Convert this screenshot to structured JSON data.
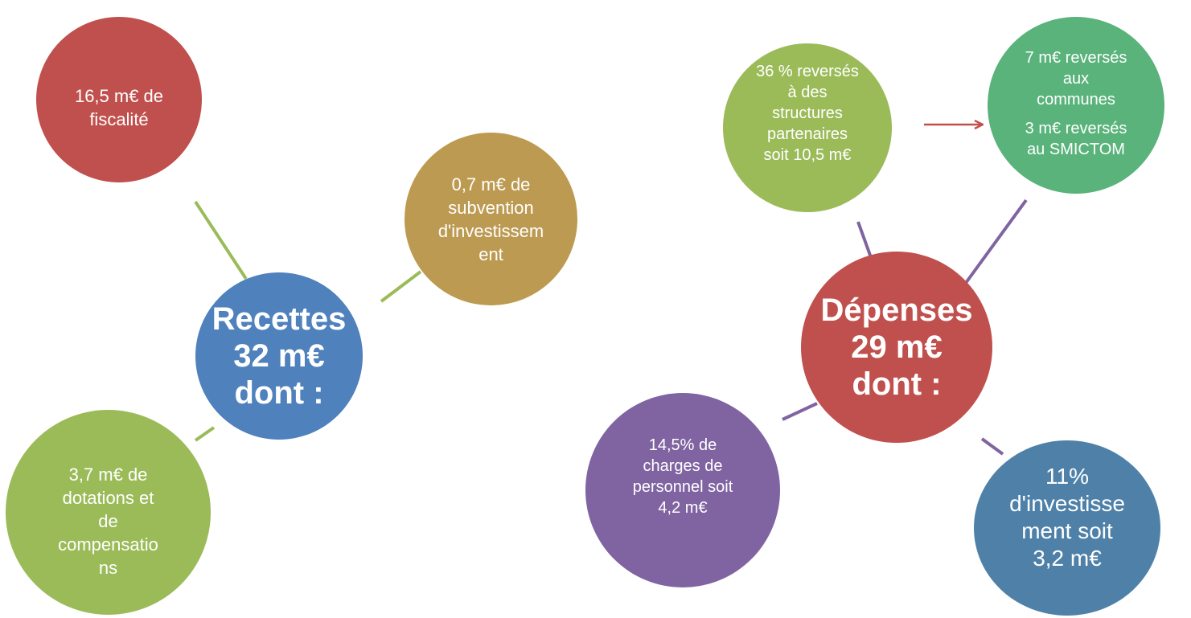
{
  "recettes": {
    "center": [
      "Recettes",
      "32 m€",
      "dont :"
    ],
    "fiscalite": [
      "16,5 m€ de",
      "fiscalité"
    ],
    "subvention": [
      "0,7 m€ de",
      "subvention",
      "d'investissem",
      "ent"
    ],
    "dotations": [
      "3,7 m€ de",
      "dotations et",
      "de",
      "compensatio",
      "ns"
    ]
  },
  "depenses": {
    "center": [
      "Dépenses",
      "29 m€",
      "dont :"
    ],
    "structures": [
      "36 % reversés",
      "à des",
      "structures",
      "partenaires",
      "soit 10,5 m€"
    ],
    "communes": [
      "7 m€ reversés",
      "aux",
      "communes"
    ],
    "smictom": [
      "3 m€ reversés",
      "au SMICTOM"
    ],
    "personnel": [
      "14,5% de",
      "charges de",
      "personnel soit",
      "4,2 m€"
    ],
    "investissement": [
      "11%",
      "d'investisse",
      "ment soit",
      "3,2 m€"
    ]
  },
  "colors": {
    "red": "#c0504d",
    "green": "#9bbb59",
    "teal_green": "#59b37b",
    "gold": "#bd9a51",
    "blue": "#4f81bd",
    "purple": "#8064a2",
    "steel_blue": "#4f81a8",
    "connector_green": "#9bbb59",
    "connector_purple": "#8064a2",
    "arrow_red": "#c0504d"
  }
}
